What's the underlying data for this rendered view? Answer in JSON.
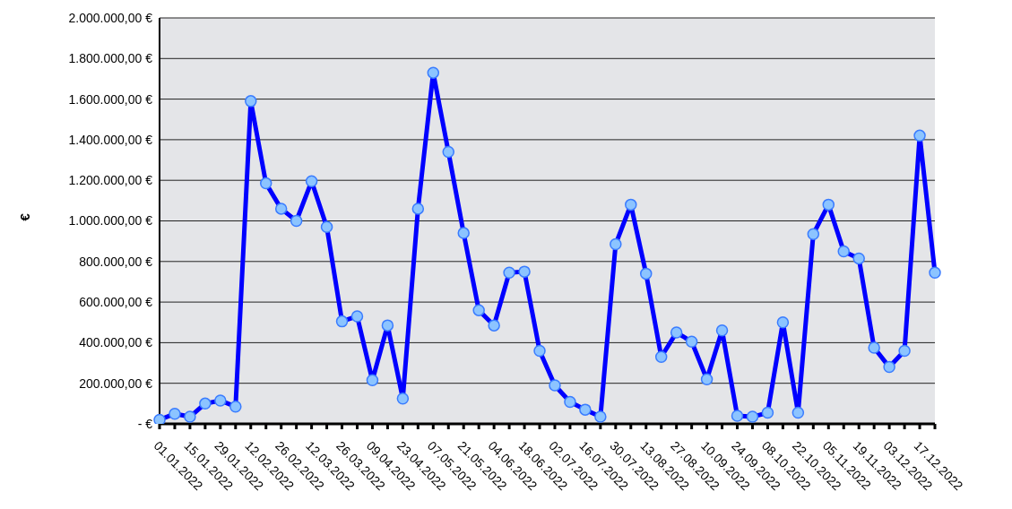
{
  "chart_data": {
    "type": "line",
    "ylabel": "€",
    "categories": [
      "01.01.2022",
      null,
      "15.01.2022",
      null,
      "29.01.2022",
      null,
      "12.02.2022",
      null,
      "26.02.2022",
      null,
      "12.03.2022",
      null,
      "26.03.2022",
      null,
      "09.04.2022",
      null,
      "23.04.2022",
      null,
      "07.05.2022",
      null,
      "21.05.2022",
      null,
      "04.06.2022",
      null,
      "18.06.2022",
      null,
      "02.07.2022",
      null,
      "16.07.2022",
      null,
      "30.07.2022",
      null,
      "13.08.2022",
      null,
      "27.08.2022",
      null,
      "10.09.2022",
      null,
      "24.09.2022",
      null,
      "08.10.2022",
      null,
      "22.10.2022",
      null,
      "05.11.2022",
      null,
      "19.11.2022",
      null,
      "03.12.2022",
      null,
      "17.12.2022",
      null
    ],
    "series": [
      {
        "color": "#0000ff",
        "values": [
          20000,
          50000,
          35000,
          100000,
          115000,
          85000,
          1590000,
          1185000,
          1060000,
          1000000,
          1195000,
          970000,
          505000,
          530000,
          215000,
          485000,
          125000,
          1060000,
          1730000,
          1340000,
          940000,
          560000,
          485000,
          745000,
          750000,
          360000,
          190000,
          108000,
          70000,
          35000,
          885000,
          1080000,
          740000,
          330000,
          450000,
          405000,
          220000,
          460000,
          40000,
          35000,
          55000,
          500000,
          55000,
          935000,
          1080000,
          850000,
          815000,
          375000,
          280000,
          360000,
          1420000,
          745000
        ]
      }
    ],
    "ylim": [
      0,
      2000000
    ],
    "yticks": [
      {
        "value": 0,
        "label": "-   €"
      },
      {
        "value": 200000,
        "label": "200.000,00 €"
      },
      {
        "value": 400000,
        "label": "400.000,00 €"
      },
      {
        "value": 600000,
        "label": "600.000,00 €"
      },
      {
        "value": 800000,
        "label": "800.000,00 €"
      },
      {
        "value": 1000000,
        "label": "1.000.000,00 €"
      },
      {
        "value": 1200000,
        "label": "1.200.000,00 €"
      },
      {
        "value": 1400000,
        "label": "1.400.000,00 €"
      },
      {
        "value": 1600000,
        "label": "1.600.000,00 €"
      },
      {
        "value": 1800000,
        "label": "1.800.000,00 €"
      },
      {
        "value": 2000000,
        "label": "2.000.000,00 €"
      }
    ],
    "grid": "y",
    "legend": false,
    "marker": "circle",
    "line_style": "solid"
  }
}
